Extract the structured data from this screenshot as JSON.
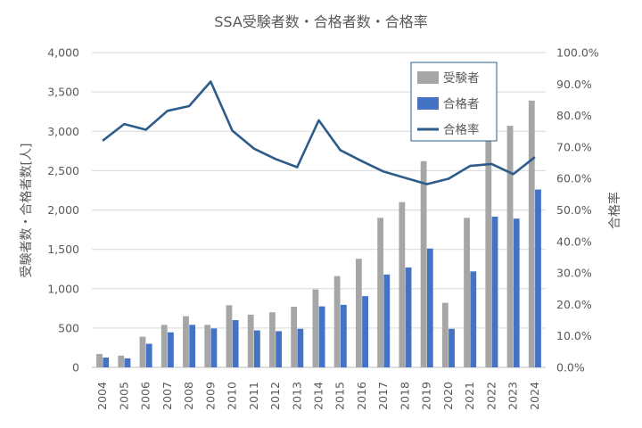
{
  "chart_data": {
    "type": "bar",
    "title": "SSA受験者数・合格者数・合格率",
    "ylabel": "受験者数・合格者数[人]",
    "y2label": "合格率",
    "xlabel": "",
    "categories": [
      "2004",
      "2005",
      "2006",
      "2007",
      "2008",
      "2009",
      "2010",
      "2011",
      "2012",
      "2013",
      "2014",
      "2015",
      "2016",
      "2017",
      "2018",
      "2019",
      "2020",
      "2021",
      "2022",
      "2023",
      "2024"
    ],
    "series": [
      {
        "name": "受験者",
        "kind": "bar",
        "axis": "left",
        "color": "#a6a6a6",
        "values": [
          170,
          150,
          390,
          540,
          650,
          540,
          790,
          670,
          700,
          770,
          990,
          1160,
          1380,
          1900,
          2100,
          2620,
          820,
          1900,
          2960,
          3070,
          3390
        ]
      },
      {
        "name": "合格者",
        "kind": "bar",
        "axis": "left",
        "color": "#4472c4",
        "values": [
          125,
          115,
          300,
          445,
          540,
          495,
          600,
          470,
          460,
          490,
          775,
          795,
          905,
          1180,
          1270,
          1510,
          490,
          1220,
          1915,
          1890,
          2260
        ]
      },
      {
        "name": "合格率",
        "kind": "line",
        "axis": "right",
        "color": "#2e5c8a",
        "values": [
          72.0,
          77.3,
          75.5,
          81.5,
          83.0,
          90.8,
          75.2,
          69.5,
          66.2,
          63.6,
          78.5,
          69.0,
          65.5,
          62.2,
          60.2,
          58.2,
          59.9,
          64.0,
          64.6,
          61.4,
          66.8
        ]
      }
    ],
    "ylim": [
      0,
      4000
    ],
    "y_ticks": [
      0,
      500,
      1000,
      1500,
      2000,
      2500,
      3000,
      3500,
      4000
    ],
    "y_tick_labels": [
      "0",
      "500",
      "1,000",
      "1,500",
      "2,000",
      "2,500",
      "3,000",
      "3,500",
      "4,000"
    ],
    "y2lim": [
      0,
      100
    ],
    "y2_ticks": [
      0,
      10,
      20,
      30,
      40,
      50,
      60,
      70,
      80,
      90,
      100
    ],
    "y2_tick_labels": [
      "0.0%",
      "10.0%",
      "20.0%",
      "30.0%",
      "40.0%",
      "50.0%",
      "60.0%",
      "70.0%",
      "80.0%",
      "90.0%",
      "100.0%"
    ],
    "grid": true,
    "legend": "top-right"
  }
}
